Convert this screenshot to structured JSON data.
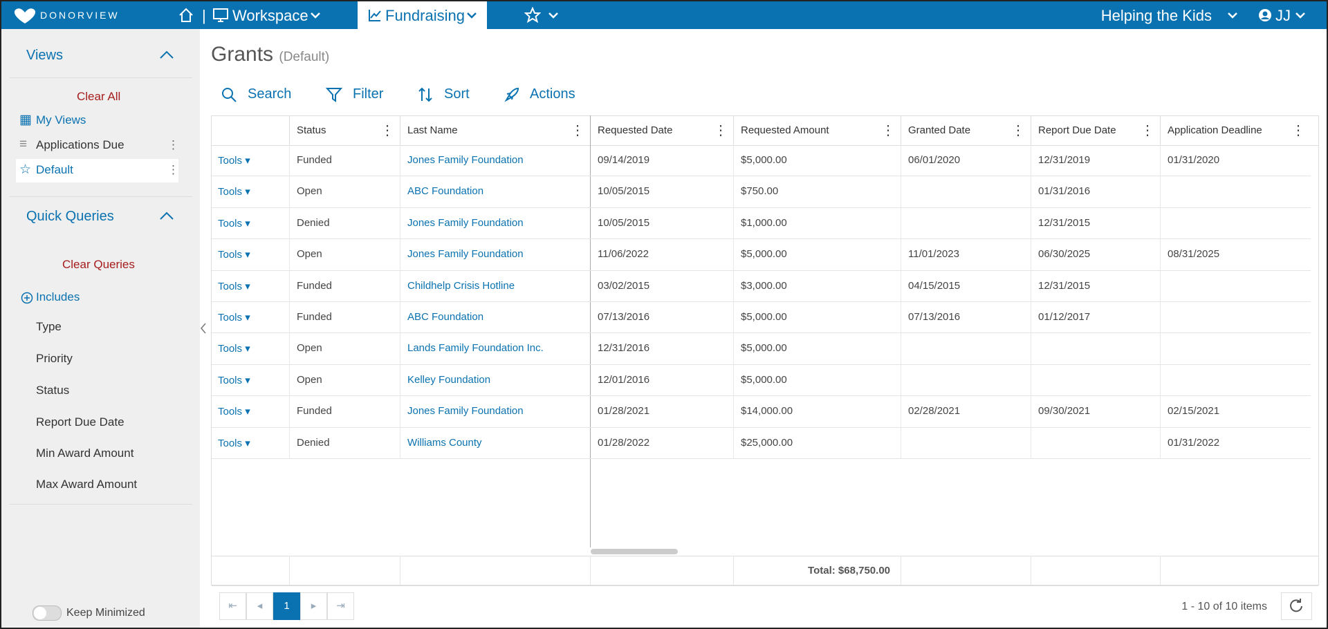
{
  "nav": {
    "brand": "DONORVIEW",
    "workspace": "Workspace",
    "fundraising": "Fundraising",
    "organization": "Helping the Kids",
    "user": "JJ"
  },
  "sidebar": {
    "views_title": "Views",
    "clear_all": "Clear All",
    "views": [
      "My Views",
      "Applications Due",
      "Default"
    ],
    "quick_queries_title": "Quick Queries",
    "clear_queries": "Clear Queries",
    "includes": "Includes",
    "filters": [
      "Type",
      "Priority",
      "Status",
      "Report Due Date",
      "Min Award Amount",
      "Max Award Amount"
    ],
    "keep_minimized": "Keep Minimized"
  },
  "page": {
    "title": "Grants",
    "subtitle": "(Default)"
  },
  "toolbar": [
    "Search",
    "Filter",
    "Sort",
    "Actions"
  ],
  "table": {
    "row_action": "Tools",
    "columns": [
      "Status",
      "Last Name",
      "Requested Date",
      "Requested Amount",
      "Granted Date",
      "Report Due Date",
      "Application Deadline"
    ],
    "rows": [
      [
        "Funded",
        "Jones Family Foundation",
        "09/14/2019",
        "$5,000.00",
        "06/01/2020",
        "12/31/2019",
        "01/31/2020"
      ],
      [
        "Open",
        "ABC Foundation",
        "10/05/2015",
        "$750.00",
        null,
        "01/31/2016",
        null
      ],
      [
        "Denied",
        "Jones Family Foundation",
        "10/05/2015",
        "$1,000.00",
        null,
        "12/31/2015",
        null
      ],
      [
        "Open",
        "Jones Family Foundation",
        "11/06/2022",
        "$5,000.00",
        "11/01/2023",
        "06/30/2025",
        "08/31/2025"
      ],
      [
        "Funded",
        "Childhelp Crisis Hotline",
        "03/02/2015",
        "$3,000.00",
        "04/15/2015",
        "12/31/2015",
        null
      ],
      [
        "Funded",
        "ABC Foundation",
        "07/13/2016",
        "$5,000.00",
        "07/13/2016",
        "01/12/2017",
        null
      ],
      [
        "Open",
        "Lands Family Foundation Inc.",
        "12/31/2016",
        "$5,000.00",
        null,
        null,
        null
      ],
      [
        "Open",
        "Kelley Foundation",
        "12/01/2016",
        "$5,000.00",
        null,
        null,
        null
      ],
      [
        "Funded",
        "Jones Family Foundation",
        "01/28/2021",
        "$14,000.00",
        "02/28/2021",
        "09/30/2021",
        "02/15/2021"
      ],
      [
        "Denied",
        "Williams County",
        "01/28/2022",
        "$25,000.00",
        null,
        null,
        "01/31/2022"
      ]
    ],
    "total": "Total: $68,750.00"
  },
  "pager": {
    "page": "1",
    "summary": "1 - 10 of 10 items"
  }
}
